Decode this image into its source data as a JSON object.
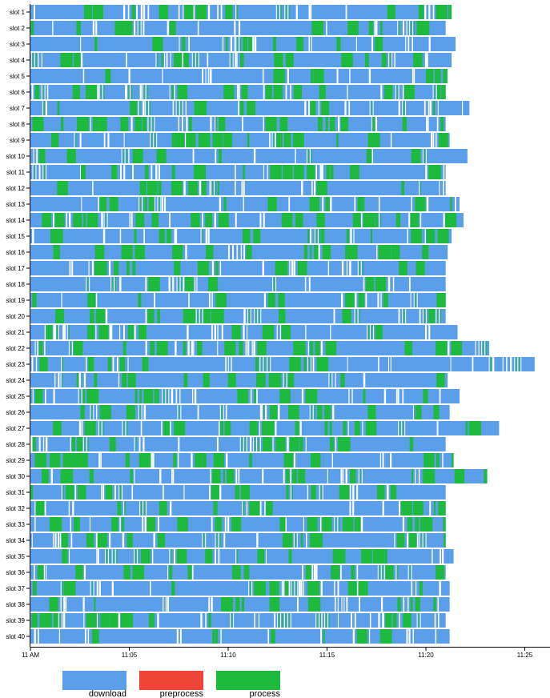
{
  "chart_data": {
    "type": "gantt",
    "title": "",
    "xlabel": "",
    "ylabel": "",
    "x_ticks": [
      "11 AM",
      "11:05",
      "11:10",
      "11:15",
      "11:20",
      "11:25"
    ],
    "x_range_minutes": [
      0,
      26.5
    ],
    "slots": [
      "slot 1",
      "slot 2",
      "slot 3",
      "slot 4",
      "slot 5",
      "slot 6",
      "slot 7",
      "slot 8",
      "slot 9",
      "slot 10",
      "slot 11",
      "slot 12",
      "slot 13",
      "slot 14",
      "slot 15",
      "slot 16",
      "slot 17",
      "slot 18",
      "slot 19",
      "slot 20",
      "slot 21",
      "slot 22",
      "slot 23",
      "slot 24",
      "slot 25",
      "slot 26",
      "slot 27",
      "slot 28",
      "slot 29",
      "slot 30",
      "slot 31",
      "slot 32",
      "slot 33",
      "slot 34",
      "slot 35",
      "slot 36",
      "slot 37",
      "slot 38",
      "slot 39",
      "slot 40"
    ],
    "slot_end_minutes": [
      21.3,
      21.0,
      21.5,
      21.3,
      21.1,
      21.0,
      22.2,
      21.0,
      21.2,
      22.1,
      21.0,
      21.0,
      21.7,
      21.9,
      21.3,
      21.1,
      21.0,
      21.0,
      21.0,
      21.0,
      21.6,
      23.2,
      25.5,
      21.1,
      21.7,
      21.2,
      23.7,
      21.0,
      21.4,
      23.1,
      21.0,
      21.0,
      21.0,
      21.0,
      21.4,
      21.0,
      21.2,
      21.2,
      21.0,
      21.2
    ],
    "task_types": [
      {
        "name": "download",
        "color": "#5B9FEA"
      },
      {
        "name": "preprocess",
        "color": "#EE4539"
      },
      {
        "name": "process",
        "color": "#1DBA3E"
      }
    ],
    "legend": {
      "position": "bottom-left",
      "entries": [
        "download",
        "preprocess",
        "process"
      ]
    }
  }
}
